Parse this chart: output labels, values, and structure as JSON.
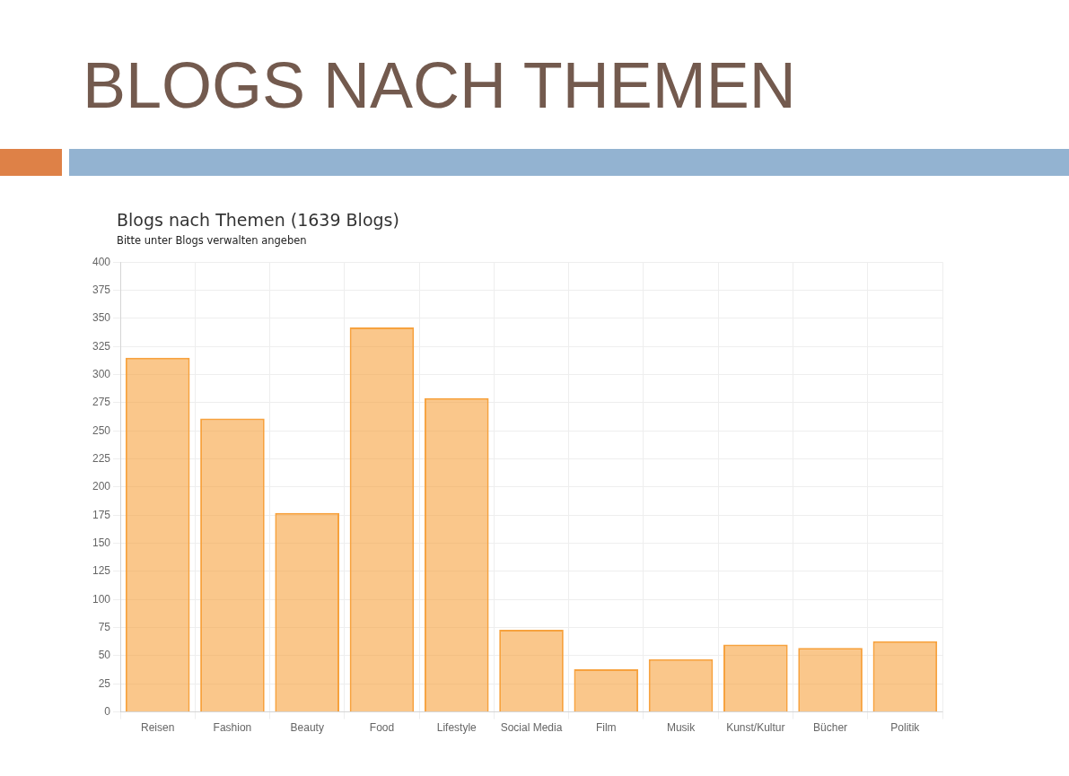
{
  "chart_data": {
    "type": "bar",
    "title": "BLOGS NACH THEMEN",
    "subtitle": "Blogs nach Themen (1639 Blogs)",
    "annotations": [
      "Bitte unter Blogs verwalten angeben"
    ],
    "categories": [
      "Reisen",
      "Fashion",
      "Beauty",
      "Food",
      "Lifestyle",
      "Social Media",
      "Film",
      "Musik",
      "Kunst/Kultur",
      "Bücher",
      "Politik"
    ],
    "values": [
      315,
      261,
      177,
      342,
      279,
      73,
      38,
      47,
      60,
      57,
      63
    ],
    "color": "#f7a23e",
    "ylim": [
      0,
      400
    ],
    "yticks": [
      0,
      25,
      50,
      75,
      100,
      125,
      150,
      175,
      200,
      225,
      250,
      275,
      300,
      325,
      350,
      375,
      400
    ],
    "grid": true,
    "legend": false
  }
}
